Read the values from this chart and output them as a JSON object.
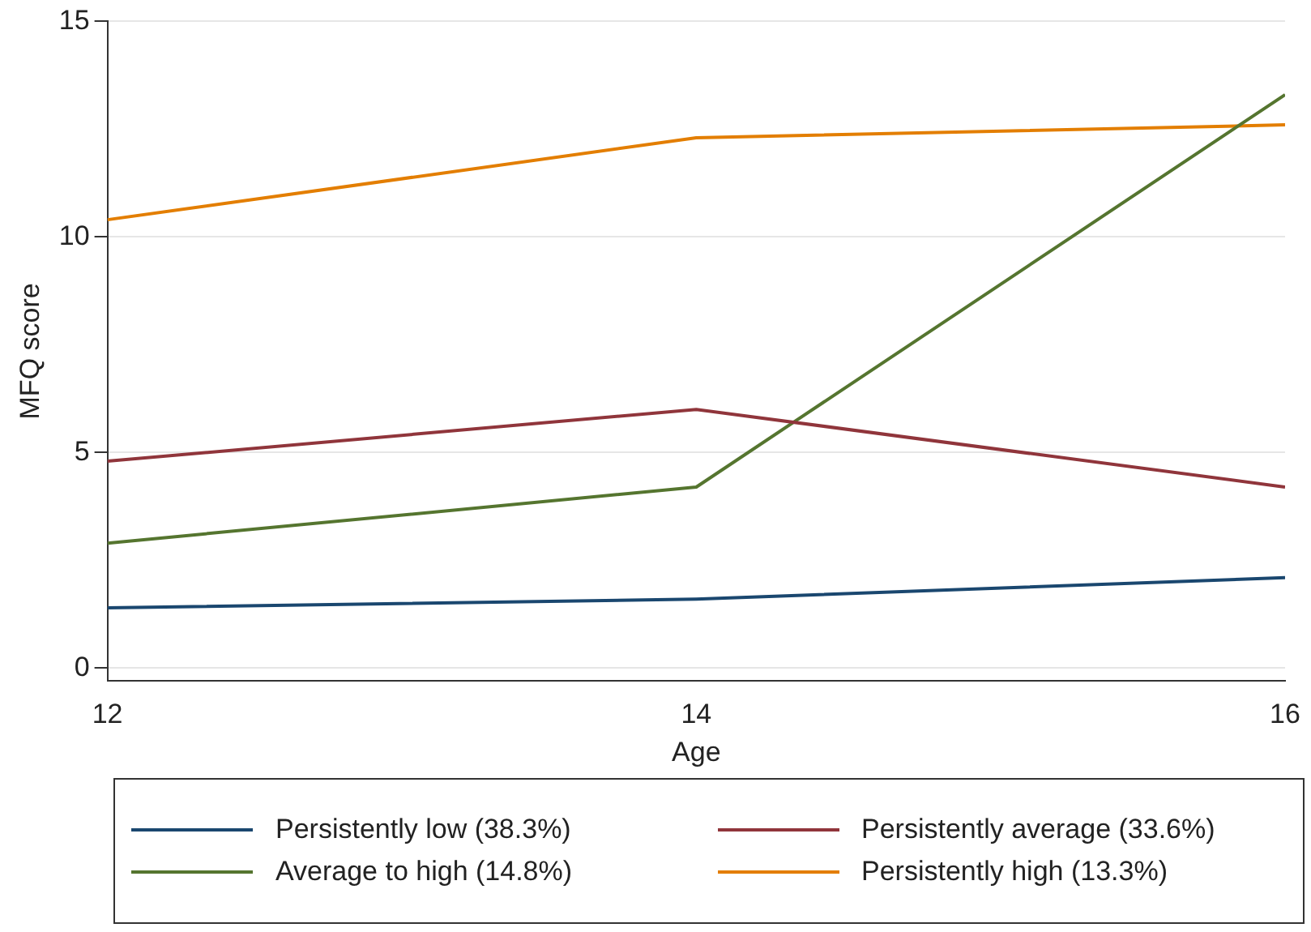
{
  "chart_data": {
    "type": "line",
    "xlabel": "Age",
    "ylabel": "MFQ score",
    "x": [
      12,
      14,
      16
    ],
    "xlim": [
      12,
      16
    ],
    "xticks": [
      12,
      14,
      16
    ],
    "ylim": [
      -0.3,
      15
    ],
    "yticks": [
      0,
      5,
      10,
      15
    ],
    "grid": "y",
    "legend": "bottom",
    "marker": "none",
    "line_style": "solid",
    "series": [
      {
        "name": "Persistently low (38.3%)",
        "color": "#1a476f",
        "values": [
          1.4,
          1.6,
          2.1
        ]
      },
      {
        "name": "Persistently average (33.6%)",
        "color": "#90353b",
        "values": [
          4.8,
          6.0,
          4.2
        ]
      },
      {
        "name": "Average to high (14.8%)",
        "color": "#55752f",
        "values": [
          2.9,
          4.2,
          13.3
        ]
      },
      {
        "name": "Persistently high (13.3%)",
        "color": "#e37e00",
        "values": [
          10.4,
          12.3,
          12.6
        ]
      }
    ]
  }
}
